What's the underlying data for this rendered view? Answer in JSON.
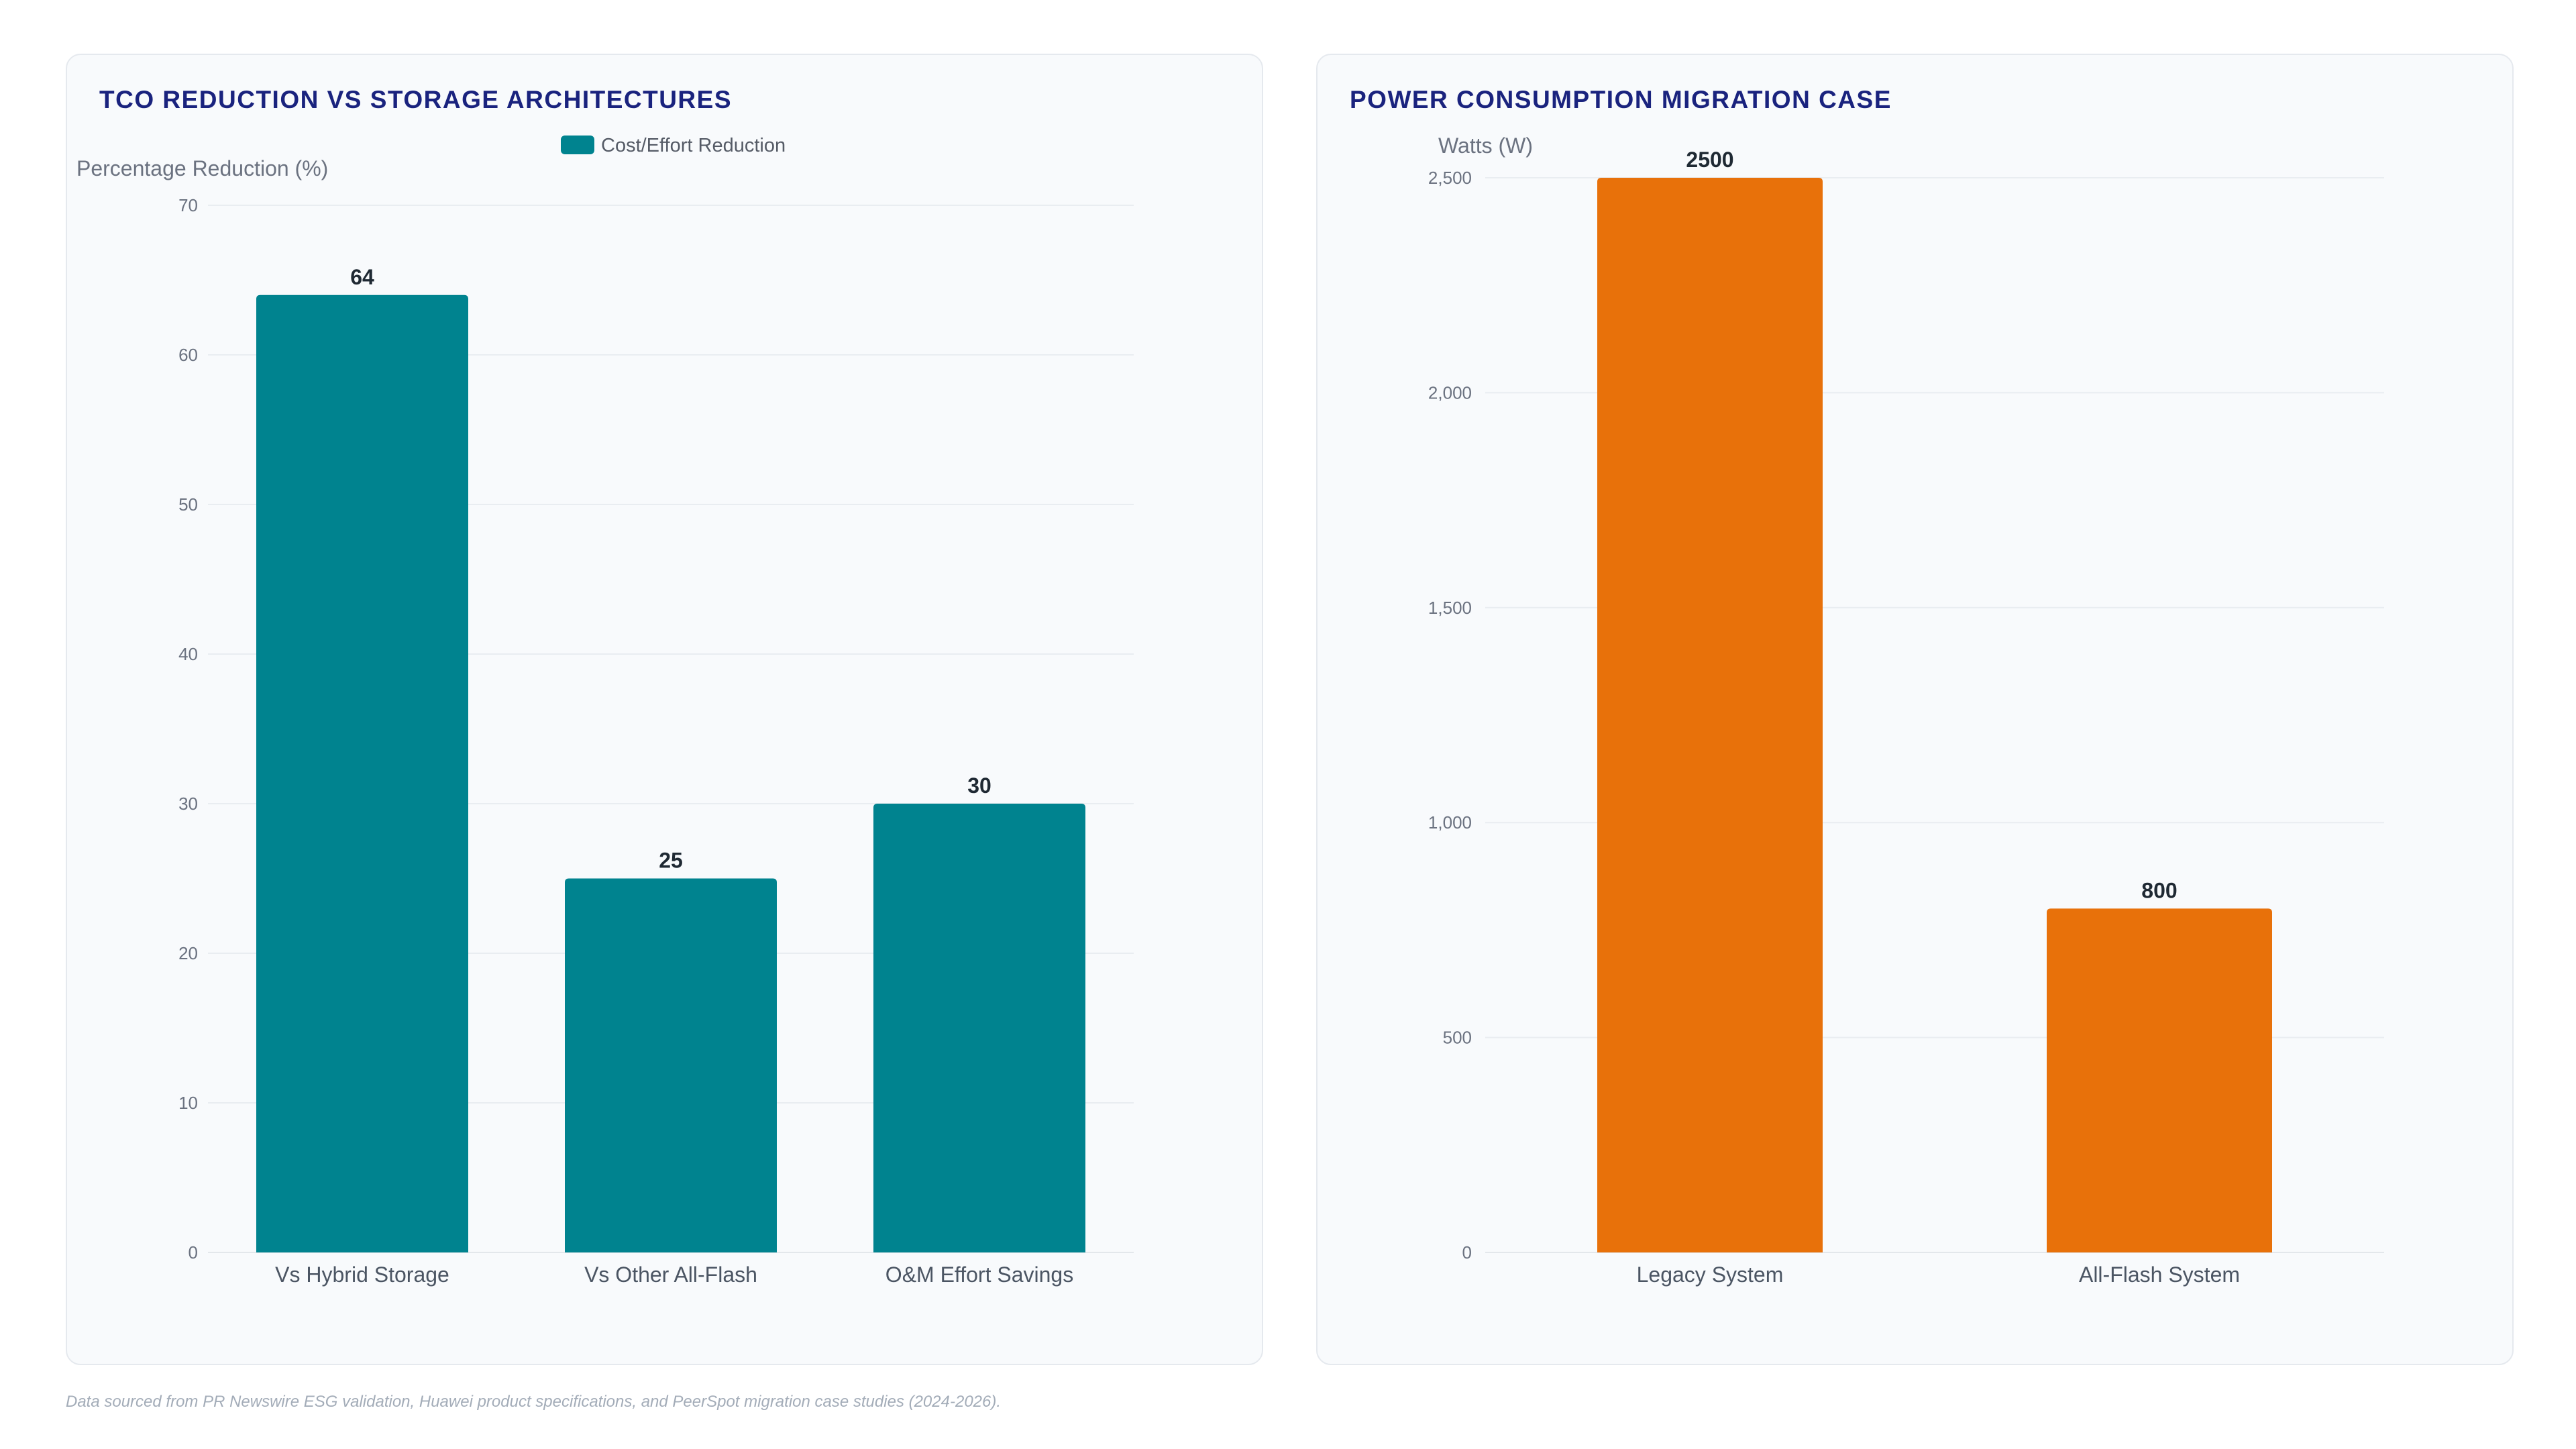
{
  "footnote": "Data sourced from PR Newswire ESG validation, Huawei product specifications, and PeerSpot migration case studies (2024-2026).",
  "chart_data": [
    {
      "type": "bar",
      "title": "TCO REDUCTION VS STORAGE ARCHITECTURES",
      "xlabel": "",
      "ylabel": "Percentage Reduction (%)",
      "categories": [
        "Vs Hybrid Storage",
        "Vs Other All-Flash",
        "O&M Effort Savings"
      ],
      "series": [
        {
          "name": "Cost/Effort Reduction",
          "values": [
            64,
            25,
            30
          ],
          "color": "#00838f"
        }
      ],
      "ylim": [
        0,
        70
      ],
      "yticks": [
        0,
        10,
        20,
        30,
        40,
        50,
        60,
        70
      ],
      "ytick_labels": [
        "0",
        "10",
        "20",
        "30",
        "40",
        "50",
        "60",
        "70"
      ],
      "legend": "top-center",
      "grid": true
    },
    {
      "type": "bar",
      "title": "POWER CONSUMPTION MIGRATION CASE",
      "xlabel": "",
      "ylabel": "Watts (W)",
      "categories": [
        "Legacy System",
        "All-Flash System"
      ],
      "series": [
        {
          "values": [
            2500,
            800
          ],
          "color": "#e8710a"
        }
      ],
      "ylim": [
        0,
        2500
      ],
      "yticks": [
        0,
        500,
        1000,
        1500,
        2000,
        2500
      ],
      "ytick_labels": [
        "0",
        "500",
        "1,000",
        "1,500",
        "2,000",
        "2,500"
      ],
      "legend": "none",
      "grid": true
    }
  ]
}
